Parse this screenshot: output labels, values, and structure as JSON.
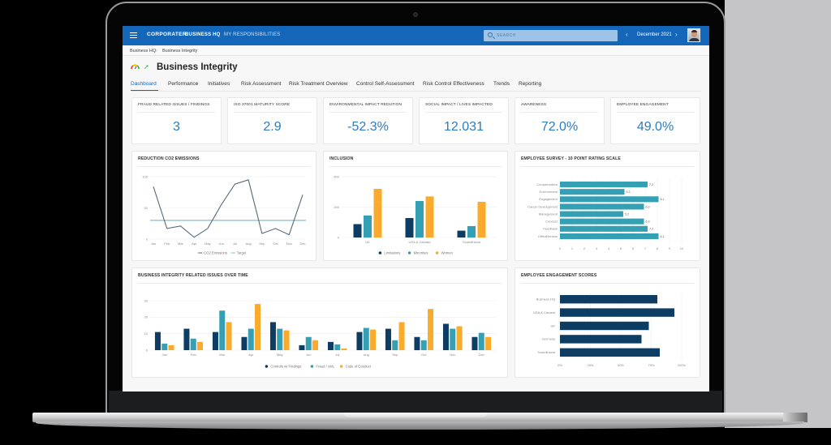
{
  "app": {
    "logo": "CORPORATER",
    "nav": [
      {
        "label": "BUSINESS HQ",
        "active": true
      },
      {
        "label": "MY RESPONSIBILITIES",
        "active": false
      }
    ],
    "search_placeholder": "SEARCH",
    "period": "December 2021",
    "prev_icon": "‹",
    "next_icon": "›"
  },
  "breadcrumb": [
    "Business HQ",
    "Business Integrity"
  ],
  "breadcrumb_sep": "›",
  "page": {
    "title": "Business Integrity",
    "kebab": "⋮",
    "arrow": "➚"
  },
  "tabs": [
    {
      "label": "Dashboard",
      "active": true
    },
    {
      "label": "Performance"
    },
    {
      "label": "Initiatives"
    },
    {
      "label": "Risk Assessment"
    },
    {
      "label": "Risk Treatment Overview"
    },
    {
      "label": "Control Self-Assessment"
    },
    {
      "label": "Risk Control Effectiveness"
    },
    {
      "label": "Trends"
    },
    {
      "label": "Reporting"
    }
  ],
  "kpis": [
    {
      "label": "FRAUD RELATED ISSUES / FINDINGS",
      "value": "3"
    },
    {
      "label": "ISO 37001 MATURITY SCORE",
      "value": "2.9"
    },
    {
      "label": "ENVIRONMENTAL IMPACT REDUTION",
      "value": "-52.3%"
    },
    {
      "label": "SOCIAL IMPACT / LIVES IMPACTED",
      "value": "12.031"
    },
    {
      "label": "AWARENESS",
      "value": "72.0%"
    },
    {
      "label": "EMPLOYEE ENGAGEMENT",
      "value": "49.0%"
    }
  ],
  "colors": {
    "brand_blue": "#1467b8",
    "kpi_value": "#2e7bbf",
    "navy": "#0d3d63",
    "teal": "#35a0b4",
    "orange": "#fbab2c",
    "line": "#56697a",
    "target": "#7fbfce"
  },
  "chart_data": [
    {
      "id": "co2",
      "type": "line",
      "title": "REDUCTION CO2 EMISSIONS",
      "categories": [
        "Jan",
        "Feb",
        "Mar",
        "Apr",
        "May",
        "Jun",
        "Jul",
        "Aug",
        "Sep",
        "Oct",
        "Nov",
        "Dec"
      ],
      "series": [
        {
          "name": "CO2 Emissions",
          "values": [
            84,
            17,
            21,
            3,
            17,
            55,
            88,
            95,
            9,
            17,
            7,
            71
          ]
        },
        {
          "name": "Target",
          "values": [
            30,
            30,
            30,
            30,
            30,
            30,
            30,
            30,
            30,
            30,
            30,
            30
          ]
        }
      ],
      "yticks": [
        0,
        50,
        100
      ],
      "ylim": [
        0,
        100
      ],
      "grid": true,
      "legend_position": "bottom"
    },
    {
      "id": "inclusion",
      "type": "bar",
      "title": "INCLUSION",
      "categories": [
        "UK",
        "USA & Canada",
        "Scandinavia"
      ],
      "series": [
        {
          "name": "Limitations",
          "values": [
            88,
            128,
            45
          ]
        },
        {
          "name": "Minorities",
          "values": [
            145,
            240,
            75
          ]
        },
        {
          "name": "Women",
          "values": [
            320,
            270,
            235
          ]
        }
      ],
      "yticks": [
        0,
        200,
        400
      ],
      "ylim": [
        0,
        400
      ],
      "grid": true,
      "legend_position": "bottom"
    },
    {
      "id": "survey",
      "type": "bar",
      "orientation": "horizontal",
      "title": "EMPLOYEE SURVEY - 10 POINT RATING SCALE",
      "categories": [
        "Compensation",
        "Environment",
        "Engagement",
        "Career Development",
        "Management",
        "Conduct",
        "Feedback",
        "Effectiveness"
      ],
      "values": [
        7.2,
        5.3,
        8.1,
        6.9,
        5.2,
        6.9,
        7.2,
        8.1
      ],
      "labels": [
        "7.2",
        "5.3",
        "8.1",
        "6.9",
        "5.2",
        "6.9",
        "7.2",
        "8.1"
      ],
      "xticks": [
        0,
        1,
        2,
        3,
        4,
        5,
        6,
        7,
        8,
        9,
        10
      ],
      "xlim": [
        0,
        10
      ],
      "grid": true
    },
    {
      "id": "issues",
      "type": "bar",
      "title": "BUSINESS INTEGRITY RELATED ISSUES OVER TIME",
      "categories": [
        "Jan",
        "Feb",
        "Mar",
        "Apr",
        "May",
        "Jun",
        "Jul",
        "Aug",
        "Sep",
        "Oct",
        "Nov",
        "Dec"
      ],
      "series": [
        {
          "name": "Controls w/ Findings",
          "values": [
            11,
            13,
            11,
            8,
            17,
            3,
            5,
            11,
            13,
            8,
            16,
            8
          ]
        },
        {
          "name": "Fraud / AML",
          "values": [
            4,
            7,
            24,
            13,
            13,
            8,
            3.5,
            13.5,
            6,
            6,
            13,
            10.5
          ]
        },
        {
          "name": "Code of Conduct",
          "values": [
            3,
            5,
            17,
            28,
            12,
            6,
            1,
            12.5,
            17,
            25,
            14.5,
            8
          ]
        }
      ],
      "yticks": [
        0,
        10,
        20,
        30
      ],
      "ylim": [
        0,
        30
      ],
      "grid": true,
      "legend_position": "bottom"
    },
    {
      "id": "engagement",
      "type": "bar",
      "orientation": "horizontal",
      "title": "EMPLOYEE ENGAGEMENT SCORES",
      "categories": [
        "Business HQ",
        "USA & Canada",
        "UK",
        "Germany",
        "Scandinavia"
      ],
      "values": [
        80,
        94,
        73,
        67,
        82
      ],
      "xticks": [
        "0%",
        "25%",
        "50%",
        "75%",
        "100%"
      ],
      "xlim": [
        0,
        100
      ],
      "grid": true
    }
  ]
}
